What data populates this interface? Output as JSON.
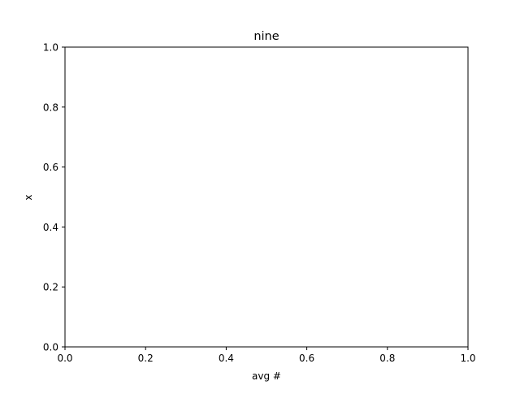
{
  "chart_data": {
    "type": "scatter",
    "title": "nine",
    "xlabel": "avg #",
    "ylabel": "x",
    "xlim": [
      0.0,
      1.0
    ],
    "ylim": [
      0.0,
      1.0
    ],
    "xticks": [
      0.0,
      0.2,
      0.4,
      0.6,
      0.8,
      1.0
    ],
    "yticks": [
      0.0,
      0.2,
      0.4,
      0.6,
      0.8,
      1.0
    ],
    "xtick_labels": [
      "0.0",
      "0.2",
      "0.4",
      "0.6",
      "0.8",
      "1.0"
    ],
    "ytick_labels": [
      "0.0",
      "0.2",
      "0.4",
      "0.6",
      "0.8",
      "1.0"
    ],
    "grid": false,
    "series": []
  }
}
